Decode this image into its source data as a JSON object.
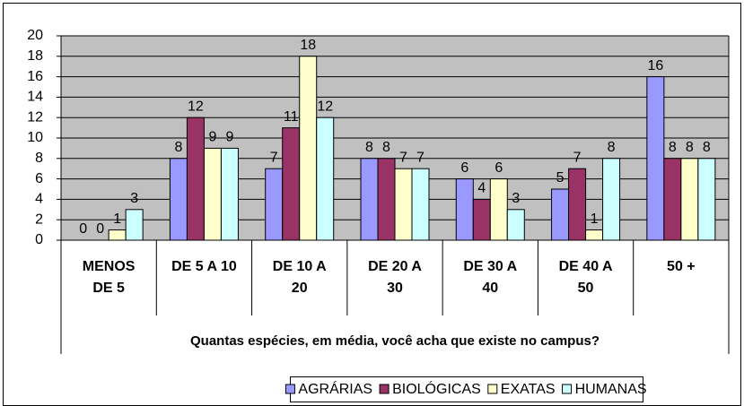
{
  "chart_data": {
    "type": "bar",
    "x_label": "Quantas espécies, em média, você acha que existe no campus?",
    "categories": [
      "MENOS DE 5",
      "DE 5 A 10",
      "DE 10 A 20",
      "DE 20 A 30",
      "DE 30 A 40",
      "DE 40 A 50",
      "50 +"
    ],
    "series": [
      {
        "name": "AGRÁRIAS",
        "color": "#9999ff",
        "values": [
          0,
          8,
          7,
          8,
          6,
          5,
          16
        ]
      },
      {
        "name": "BIOLÓGICAS",
        "color": "#993366",
        "values": [
          0,
          12,
          11,
          8,
          4,
          7,
          8
        ]
      },
      {
        "name": "EXATAS",
        "color": "#ffffcc",
        "values": [
          1,
          9,
          18,
          7,
          6,
          1,
          8
        ]
      },
      {
        "name": "HUMANAS",
        "color": "#ccffff",
        "values": [
          3,
          9,
          12,
          7,
          3,
          8,
          8
        ]
      }
    ],
    "ylim": [
      0,
      20
    ],
    "yticks": [
      0,
      2,
      4,
      6,
      8,
      10,
      12,
      14,
      16,
      18,
      20
    ],
    "grid": true,
    "plot_background": "#c0c0c0",
    "legend": "bottom"
  }
}
